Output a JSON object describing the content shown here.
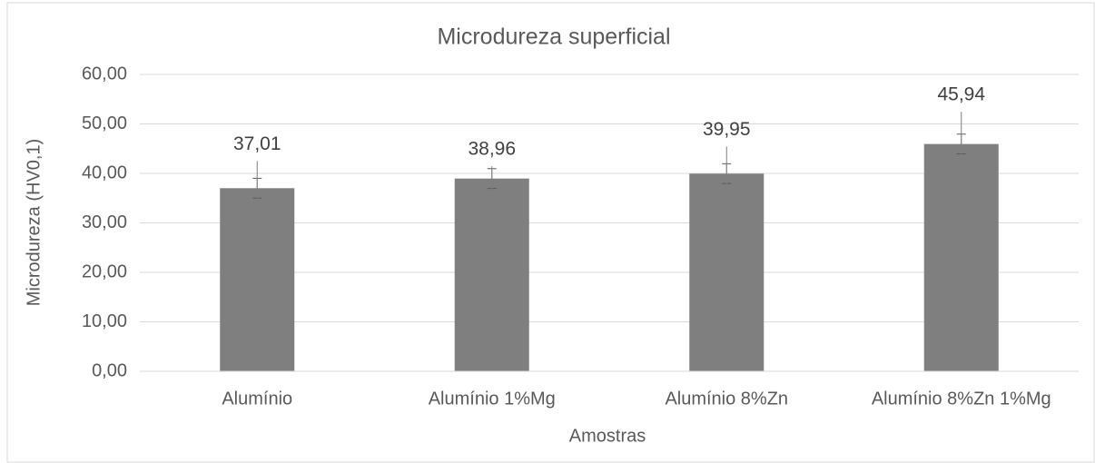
{
  "chart_data": {
    "type": "bar",
    "title": "Microdureza superficial",
    "x_label": "Amostras",
    "y_label": "Microdureza (HV0,1)",
    "categories": [
      "Alumínio",
      "Alumínio 1%Mg",
      "Alumínio 8%Zn",
      "Alumínio 8%Zn 1%Mg"
    ],
    "values": [
      37.01,
      38.96,
      39.95,
      45.94
    ],
    "value_labels": [
      "37,01",
      "38,96",
      "39,95",
      "45,94"
    ],
    "error_series": [
      {
        "values": [
          2,
          2,
          2,
          2
        ],
        "caps": true
      },
      {
        "values": [
          5.5,
          2.5,
          5.5,
          6.5
        ],
        "caps": false
      }
    ],
    "color": "#7f7f7f",
    "ylim": [
      0,
      60
    ],
    "yticks": [
      {
        "value": 0,
        "label": "0,00"
      },
      {
        "value": 10,
        "label": "10,00"
      },
      {
        "value": 20,
        "label": "20,00"
      },
      {
        "value": 30,
        "label": "30,00"
      },
      {
        "value": 40,
        "label": "40,00"
      },
      {
        "value": 50,
        "label": "50,00"
      },
      {
        "value": 60,
        "label": "60,00"
      }
    ],
    "grid": true
  }
}
